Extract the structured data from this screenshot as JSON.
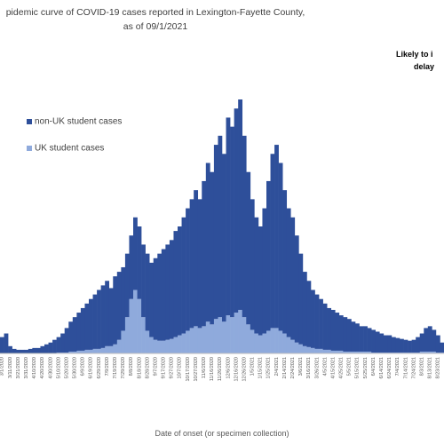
{
  "chart_data": {
    "type": "stacked_bar",
    "title": "pidemic curve of COVID-19 cases reported in Lexington-Fayette County, as of 09/1/2021",
    "annotations": [
      "Likely to i",
      "delay"
    ],
    "x_label": "Date of onset (or specimen collection)",
    "legend": "upper left",
    "categories": [
      "3/1/2020",
      null,
      "3/11/2020",
      null,
      "3/21/2020",
      null,
      "3/31/2020",
      null,
      "4/10/2020",
      null,
      "4/20/2020",
      null,
      "4/30/2020",
      null,
      "5/10/2020",
      null,
      "5/20/2020",
      null,
      "5/30/2020",
      null,
      "6/9/2020",
      null,
      "6/19/2020",
      null,
      "6/29/2020",
      null,
      "7/9/2020",
      null,
      "7/19/2020",
      null,
      "7/29/2020",
      null,
      "8/8/2020",
      null,
      "8/18/2020",
      null,
      "8/28/2020",
      null,
      "9/7/2020",
      null,
      "9/17/2020",
      null,
      "9/27/2020",
      null,
      "10/7/2020",
      null,
      "10/17/2020",
      null,
      "10/27/2020",
      null,
      "11/6/2020",
      null,
      "11/16/2020",
      null,
      "11/26/2020",
      null,
      "12/6/2020",
      null,
      "12/16/2020",
      null,
      "12/26/2020",
      null,
      "1/5/2021",
      null,
      "1/15/2021",
      null,
      "1/25/2021",
      null,
      "2/4/2021",
      null,
      "2/14/2021",
      null,
      "2/24/2021",
      null,
      "3/6/2021",
      null,
      "3/16/2021",
      null,
      "3/26/2021",
      null,
      "4/5/2021",
      null,
      "4/15/2021",
      null,
      "4/25/2021",
      null,
      "5/5/2021",
      null,
      "5/15/2021",
      null,
      "5/25/2021",
      null,
      "6/4/2021",
      null,
      "6/14/2021",
      null,
      "6/24/2021",
      null,
      "7/4/2021",
      null,
      "7/14/2021",
      null,
      "7/24/2021",
      null,
      "8/3/2021",
      null,
      "8/13/2021",
      null,
      "8/23/2021",
      null
    ],
    "series": [
      {
        "name": "UK student cases",
        "color": "#8faadc",
        "values": [
          0,
          0,
          0,
          0,
          0,
          0,
          0,
          0,
          0,
          0,
          0,
          0,
          0,
          0,
          1,
          1,
          1,
          2,
          2,
          3,
          3,
          4,
          4,
          5,
          5,
          6,
          8,
          8,
          10,
          15,
          25,
          40,
          60,
          70,
          60,
          40,
          25,
          18,
          15,
          14,
          14,
          15,
          16,
          18,
          20,
          22,
          25,
          28,
          30,
          28,
          30,
          35,
          32,
          38,
          40,
          35,
          42,
          40,
          45,
          48,
          40,
          32,
          26,
          22,
          20,
          22,
          25,
          28,
          28,
          25,
          22,
          18,
          15,
          12,
          10,
          8,
          7,
          6,
          5,
          5,
          4,
          4,
          3,
          3,
          3,
          2,
          2,
          2,
          2,
          2,
          2,
          2,
          1,
          1,
          1,
          1,
          1,
          1,
          1,
          1,
          1,
          1,
          1,
          1,
          2,
          2,
          2,
          2,
          1,
          1
        ]
      },
      {
        "name": "non-UK student cases",
        "color": "#2e4f9a",
        "values": [
          18,
          22,
          8,
          5,
          4,
          4,
          4,
          5,
          6,
          6,
          8,
          10,
          12,
          15,
          17,
          21,
          27,
          33,
          38,
          42,
          47,
          51,
          56,
          60,
          65,
          69,
          72,
          64,
          75,
          75,
          70,
          70,
          70,
          80,
          80,
          80,
          85,
          82,
          90,
          96,
          101,
          105,
          109,
          117,
          120,
          128,
          135,
          142,
          150,
          142,
          160,
          175,
          168,
          192,
          200,
          185,
          218,
          210,
          225,
          232,
          200,
          168,
          144,
          128,
          120,
          138,
          165,
          192,
          202,
          185,
          158,
          142,
          135,
          118,
          100,
          82,
          73,
          64,
          60,
          55,
          51,
          46,
          45,
          42,
          39,
          38,
          36,
          33,
          31,
          28,
          28,
          26,
          25,
          23,
          21,
          19,
          19,
          17,
          16,
          15,
          14,
          13,
          14,
          17,
          20,
          26,
          28,
          24,
          19,
          11
        ]
      }
    ]
  }
}
